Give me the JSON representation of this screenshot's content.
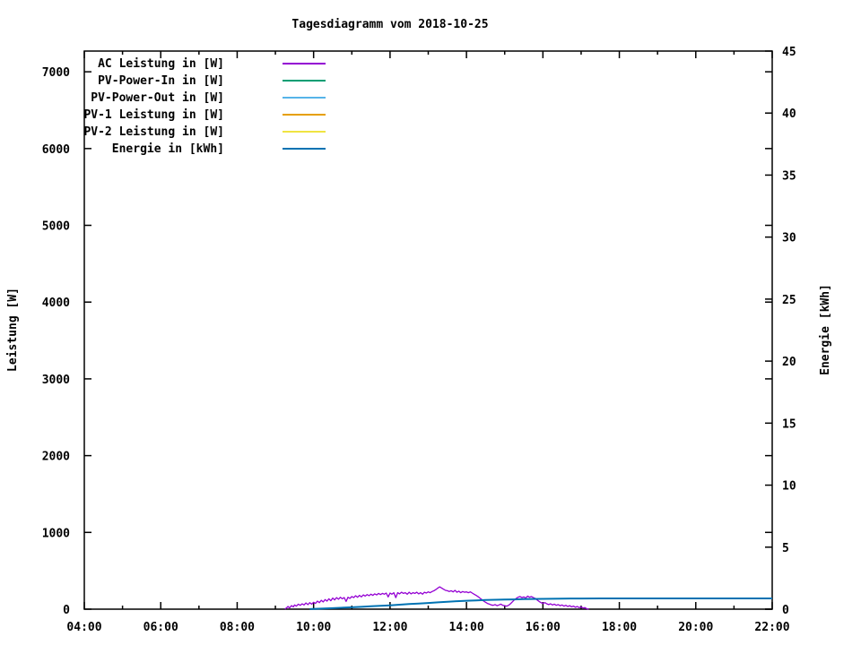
{
  "title": "Tagesdiagramm vom 2018-10-25",
  "chart_data": {
    "type": "line",
    "title": "Tagesdiagramm vom 2018-10-25",
    "xlabel": "",
    "ylabel": "Leistung [W]",
    "y2label": "Energie [kWh]",
    "x_unit": "time_of_day_hours",
    "xlim_hours": [
      4,
      22
    ],
    "ylim": [
      0,
      7270
    ],
    "y2lim": [
      0,
      45
    ],
    "grid": "off",
    "background": "#ffffff",
    "frame_color": "#000000",
    "text_color": "#000000",
    "legend_position": "top-left-inside",
    "x_ticks": {
      "values": [
        4,
        6,
        8,
        10,
        12,
        14,
        16,
        18,
        20,
        22
      ],
      "labels": [
        "04:00",
        "06:00",
        "08:00",
        "10:00",
        "12:00",
        "14:00",
        "16:00",
        "18:00",
        "20:00",
        "22:00"
      ],
      "minor": [
        5,
        7,
        9,
        11,
        13,
        15,
        17,
        19,
        21
      ]
    },
    "y_ticks": {
      "values": [
        0,
        1000,
        2000,
        3000,
        4000,
        5000,
        6000,
        7000
      ],
      "labels": [
        "0",
        "1000",
        "2000",
        "3000",
        "4000",
        "5000",
        "6000",
        "7000"
      ]
    },
    "y2_ticks": {
      "values": [
        0,
        5,
        10,
        15,
        20,
        25,
        30,
        35,
        40,
        45
      ],
      "labels": [
        "0",
        "5",
        "10",
        "15",
        "20",
        "25",
        "30",
        "35",
        "40",
        "45"
      ]
    },
    "series": [
      {
        "name": "AC Leistung in [W]",
        "color": "#9400d3",
        "axis": "y",
        "width": 1.3,
        "points": [
          [
            9.25,
            0
          ],
          [
            9.3,
            20
          ],
          [
            9.33,
            35
          ],
          [
            9.37,
            15
          ],
          [
            9.42,
            45
          ],
          [
            9.47,
            30
          ],
          [
            9.5,
            55
          ],
          [
            9.55,
            40
          ],
          [
            9.6,
            65
          ],
          [
            9.65,
            50
          ],
          [
            9.7,
            70
          ],
          [
            9.75,
            55
          ],
          [
            9.8,
            80
          ],
          [
            9.85,
            60
          ],
          [
            9.9,
            85
          ],
          [
            9.95,
            65
          ],
          [
            10.0,
            90
          ],
          [
            10.05,
            75
          ],
          [
            10.1,
            105
          ],
          [
            10.15,
            85
          ],
          [
            10.2,
            115
          ],
          [
            10.25,
            95
          ],
          [
            10.3,
            125
          ],
          [
            10.35,
            105
          ],
          [
            10.4,
            135
          ],
          [
            10.45,
            110
          ],
          [
            10.5,
            145
          ],
          [
            10.55,
            120
          ],
          [
            10.6,
            150
          ],
          [
            10.65,
            130
          ],
          [
            10.7,
            155
          ],
          [
            10.75,
            135
          ],
          [
            10.8,
            150
          ],
          [
            10.85,
            100
          ],
          [
            10.9,
            155
          ],
          [
            10.95,
            140
          ],
          [
            11.0,
            165
          ],
          [
            11.05,
            150
          ],
          [
            11.1,
            175
          ],
          [
            11.15,
            155
          ],
          [
            11.2,
            180
          ],
          [
            11.25,
            160
          ],
          [
            11.3,
            185
          ],
          [
            11.35,
            170
          ],
          [
            11.4,
            190
          ],
          [
            11.45,
            175
          ],
          [
            11.5,
            195
          ],
          [
            11.55,
            180
          ],
          [
            11.6,
            200
          ],
          [
            11.65,
            185
          ],
          [
            11.7,
            205
          ],
          [
            11.75,
            190
          ],
          [
            11.8,
            205
          ],
          [
            11.85,
            195
          ],
          [
            11.9,
            210
          ],
          [
            11.95,
            160
          ],
          [
            12.0,
            210
          ],
          [
            12.05,
            195
          ],
          [
            12.1,
            215
          ],
          [
            12.15,
            150
          ],
          [
            12.2,
            215
          ],
          [
            12.25,
            200
          ],
          [
            12.3,
            220
          ],
          [
            12.35,
            205
          ],
          [
            12.4,
            215
          ],
          [
            12.45,
            195
          ],
          [
            12.5,
            220
          ],
          [
            12.55,
            200
          ],
          [
            12.6,
            215
          ],
          [
            12.65,
            205
          ],
          [
            12.7,
            220
          ],
          [
            12.75,
            200
          ],
          [
            12.8,
            215
          ],
          [
            12.85,
            195
          ],
          [
            12.9,
            220
          ],
          [
            12.95,
            210
          ],
          [
            13.0,
            225
          ],
          [
            13.05,
            215
          ],
          [
            13.1,
            230
          ],
          [
            13.15,
            240
          ],
          [
            13.2,
            255
          ],
          [
            13.25,
            275
          ],
          [
            13.3,
            290
          ],
          [
            13.35,
            275
          ],
          [
            13.4,
            260
          ],
          [
            13.45,
            245
          ],
          [
            13.5,
            240
          ],
          [
            13.55,
            230
          ],
          [
            13.6,
            240
          ],
          [
            13.65,
            225
          ],
          [
            13.7,
            245
          ],
          [
            13.75,
            220
          ],
          [
            13.8,
            235
          ],
          [
            13.85,
            215
          ],
          [
            13.9,
            230
          ],
          [
            13.95,
            220
          ],
          [
            14.0,
            225
          ],
          [
            14.05,
            215
          ],
          [
            14.1,
            225
          ],
          [
            14.15,
            210
          ],
          [
            14.2,
            195
          ],
          [
            14.25,
            180
          ],
          [
            14.3,
            165
          ],
          [
            14.35,
            145
          ],
          [
            14.4,
            125
          ],
          [
            14.45,
            105
          ],
          [
            14.5,
            90
          ],
          [
            14.55,
            75
          ],
          [
            14.6,
            65
          ],
          [
            14.65,
            55
          ],
          [
            14.7,
            50
          ],
          [
            14.75,
            60
          ],
          [
            14.8,
            45
          ],
          [
            14.85,
            55
          ],
          [
            14.9,
            65
          ],
          [
            14.95,
            50
          ],
          [
            15.0,
            45
          ],
          [
            15.05,
            40
          ],
          [
            15.1,
            50
          ],
          [
            15.15,
            70
          ],
          [
            15.2,
            95
          ],
          [
            15.25,
            120
          ],
          [
            15.3,
            140
          ],
          [
            15.35,
            155
          ],
          [
            15.4,
            165
          ],
          [
            15.45,
            150
          ],
          [
            15.5,
            160
          ],
          [
            15.55,
            145
          ],
          [
            15.6,
            170
          ],
          [
            15.65,
            155
          ],
          [
            15.7,
            165
          ],
          [
            15.75,
            150
          ],
          [
            15.8,
            140
          ],
          [
            15.85,
            120
          ],
          [
            15.9,
            100
          ],
          [
            15.95,
            85
          ],
          [
            16.0,
            75
          ],
          [
            16.05,
            85
          ],
          [
            16.1,
            70
          ],
          [
            16.15,
            60
          ],
          [
            16.2,
            70
          ],
          [
            16.25,
            55
          ],
          [
            16.3,
            65
          ],
          [
            16.35,
            50
          ],
          [
            16.4,
            60
          ],
          [
            16.45,
            45
          ],
          [
            16.5,
            55
          ],
          [
            16.55,
            40
          ],
          [
            16.6,
            50
          ],
          [
            16.65,
            35
          ],
          [
            16.7,
            45
          ],
          [
            16.75,
            30
          ],
          [
            16.8,
            40
          ],
          [
            16.85,
            25
          ],
          [
            16.9,
            35
          ],
          [
            16.95,
            20
          ],
          [
            17.0,
            30
          ],
          [
            17.05,
            15
          ],
          [
            17.1,
            20
          ],
          [
            17.15,
            5
          ],
          [
            17.2,
            0
          ]
        ]
      },
      {
        "name": "PV-Power-In in [W]",
        "color": "#009e73",
        "axis": "y",
        "width": 1.3,
        "points": []
      },
      {
        "name": "PV-Power-Out in [W]",
        "color": "#56b4e9",
        "axis": "y",
        "width": 1.3,
        "points": []
      },
      {
        "name": "PV-1 Leistung in [W]",
        "color": "#e69f00",
        "axis": "y",
        "width": 1.3,
        "points": []
      },
      {
        "name": "PV-2 Leistung in [W]",
        "color": "#f0e442",
        "axis": "y",
        "width": 1.3,
        "points": []
      },
      {
        "name": "Energie in [kWh]",
        "color": "#0072b2",
        "axis": "y2",
        "width": 2,
        "points": [
          [
            9.9,
            0.01
          ],
          [
            10.2,
            0.04
          ],
          [
            10.5,
            0.08
          ],
          [
            10.8,
            0.12
          ],
          [
            11.0,
            0.15
          ],
          [
            11.25,
            0.19
          ],
          [
            11.5,
            0.23
          ],
          [
            11.75,
            0.27
          ],
          [
            12.0,
            0.31
          ],
          [
            12.25,
            0.36
          ],
          [
            12.5,
            0.41
          ],
          [
            12.75,
            0.45
          ],
          [
            13.0,
            0.5
          ],
          [
            13.25,
            0.55
          ],
          [
            13.5,
            0.6
          ],
          [
            13.75,
            0.64
          ],
          [
            14.0,
            0.68
          ],
          [
            14.25,
            0.71
          ],
          [
            14.5,
            0.74
          ],
          [
            14.75,
            0.76
          ],
          [
            15.0,
            0.78
          ],
          [
            15.25,
            0.79
          ],
          [
            15.5,
            0.81
          ],
          [
            15.75,
            0.82
          ],
          [
            16.0,
            0.83
          ],
          [
            16.25,
            0.84
          ],
          [
            16.5,
            0.85
          ],
          [
            17.0,
            0.86
          ],
          [
            17.5,
            0.87
          ],
          [
            22.0,
            0.87
          ]
        ]
      }
    ]
  }
}
